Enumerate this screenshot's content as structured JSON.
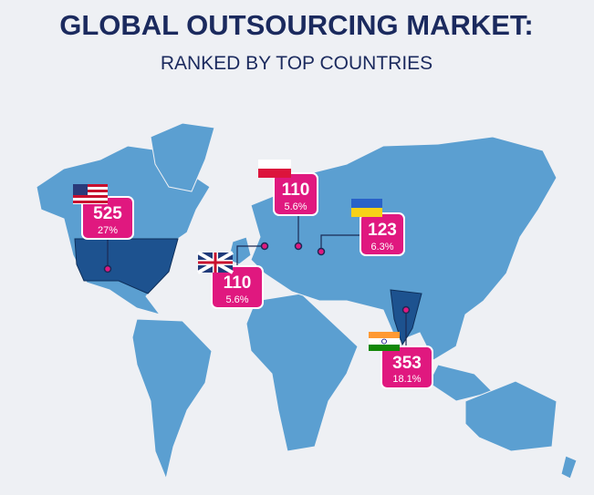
{
  "header": {
    "title": "GLOBAL OUTSOURCING MARKET:",
    "subtitle": "RANKED BY TOP COUNTRIES"
  },
  "markers": [
    {
      "value": "525",
      "share": "27%"
    },
    {
      "value": "110",
      "share": "5.6%"
    },
    {
      "value": "110",
      "share": "5.6%"
    },
    {
      "value": "123",
      "share": "6.3%"
    },
    {
      "value": "353",
      "share": "18.1%"
    }
  ]
}
